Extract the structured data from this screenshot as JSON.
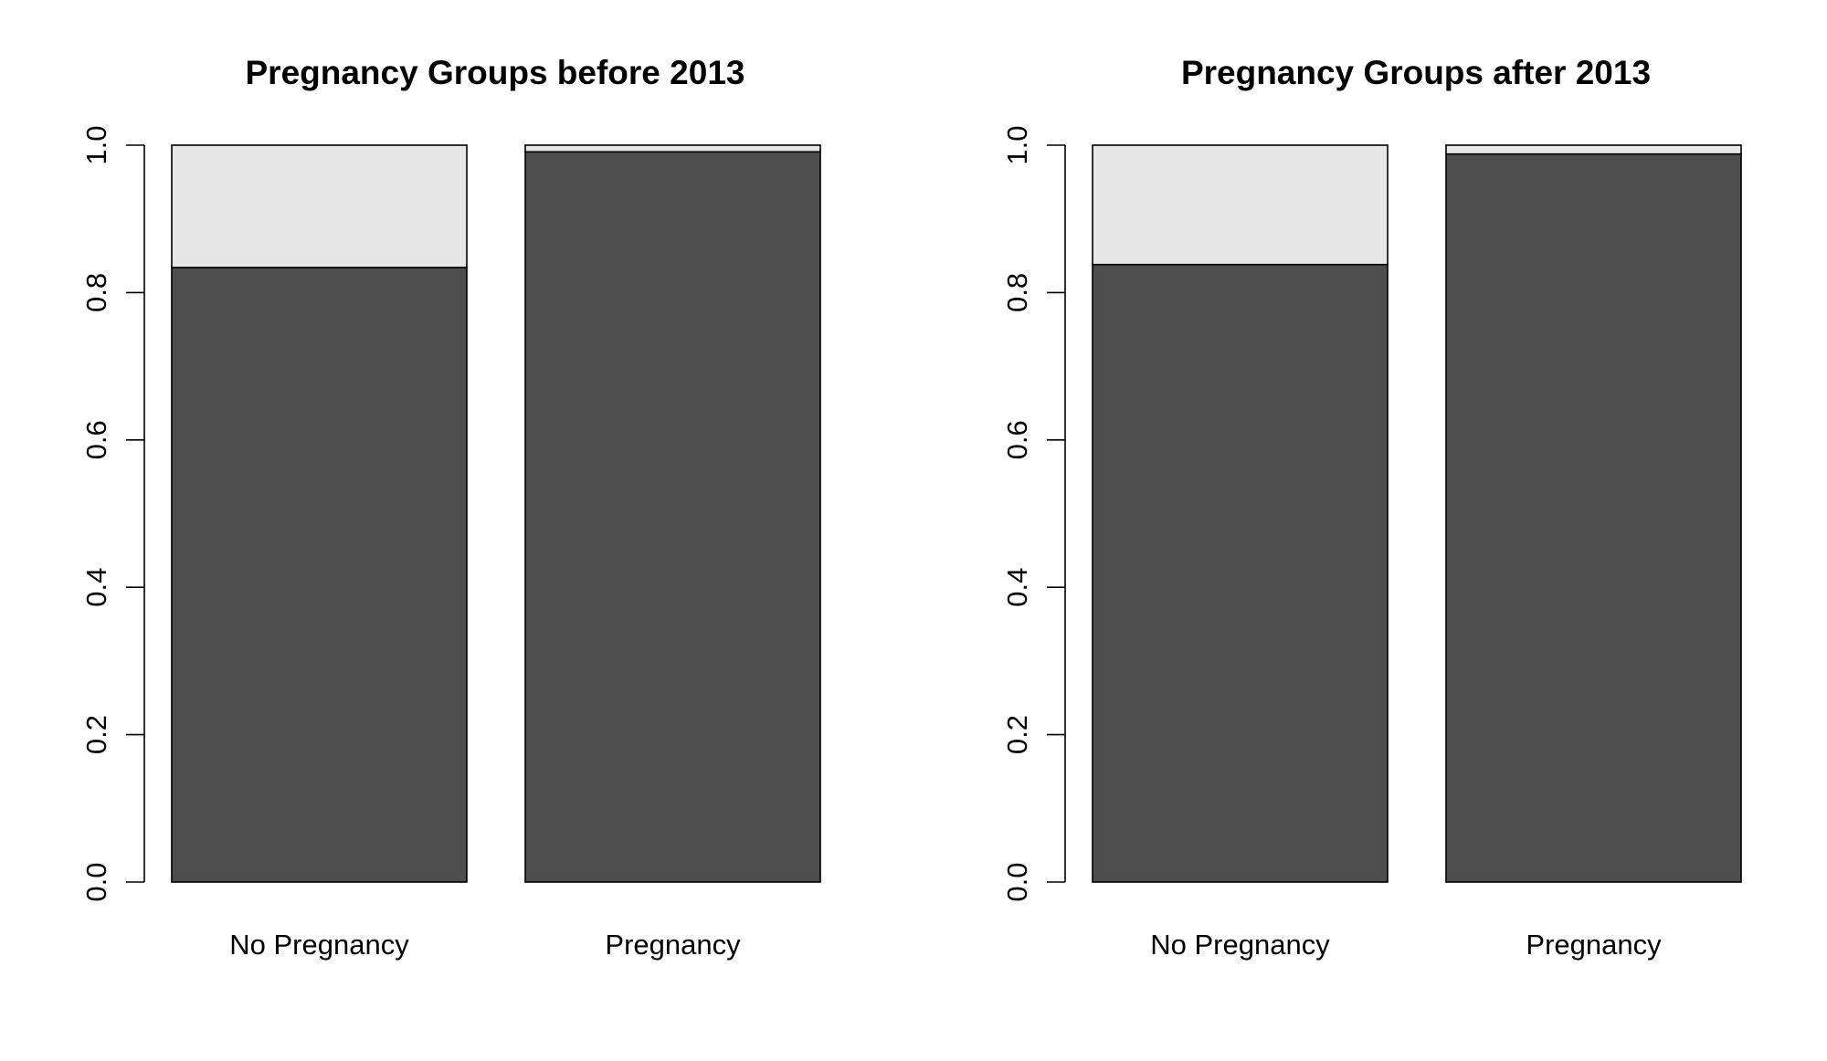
{
  "chart_data": [
    {
      "type": "bar",
      "stacked": true,
      "proportional": true,
      "title": "Pregnancy Groups before 2013",
      "categories": [
        "No Pregnancy",
        "Pregnancy"
      ],
      "series": [
        {
          "values": [
            0.834,
            0.991
          ],
          "color": "#4d4d4d"
        },
        {
          "values": [
            0.166,
            0.009
          ],
          "color": "#e6e6e6"
        }
      ],
      "ylim": [
        0,
        1
      ],
      "yticks": [
        "0.0",
        "0.2",
        "0.4",
        "0.6",
        "0.8",
        "1.0"
      ],
      "grid": false,
      "xlabel": "",
      "ylabel": ""
    },
    {
      "type": "bar",
      "stacked": true,
      "proportional": true,
      "title": "Pregnancy Groups after 2013",
      "categories": [
        "No Pregnancy",
        "Pregnancy"
      ],
      "series": [
        {
          "values": [
            0.838,
            0.988
          ],
          "color": "#4d4d4d"
        },
        {
          "values": [
            0.162,
            0.012
          ],
          "color": "#e6e6e6"
        }
      ],
      "ylim": [
        0,
        1
      ],
      "yticks": [
        "0.0",
        "0.2",
        "0.4",
        "0.6",
        "0.8",
        "1.0"
      ],
      "grid": false,
      "xlabel": "",
      "ylabel": ""
    }
  ]
}
